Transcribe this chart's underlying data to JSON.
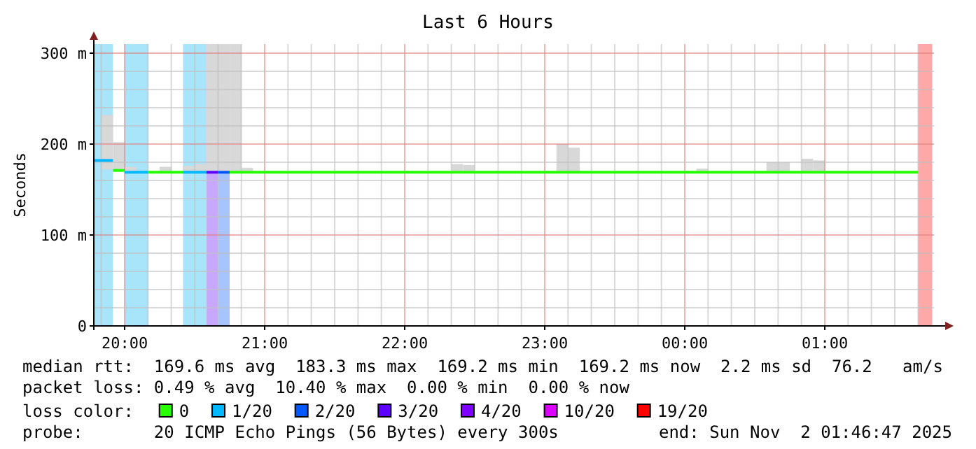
{
  "chart_data": {
    "title": "Last 6 Hours",
    "ylabel": "Seconds",
    "legend_title": "loss color:",
    "legend": "bottom",
    "grid": true,
    "xlim": [
      "2025-11-01T19:46:47",
      "2025-11-02T01:46:47"
    ],
    "xticks": [
      {
        "value": "2025-11-01T19:50",
        "label": null
      },
      {
        "value": "2025-11-01T20:00",
        "label": "20:00"
      },
      {
        "value": "2025-11-01T20:10",
        "label": null
      },
      {
        "value": "2025-11-01T20:20",
        "label": null
      },
      {
        "value": "2025-11-01T20:30",
        "label": null
      },
      {
        "value": "2025-11-01T20:40",
        "label": null
      },
      {
        "value": "2025-11-01T20:50",
        "label": null
      },
      {
        "value": "2025-11-01T21:00",
        "label": "21:00"
      },
      {
        "value": "2025-11-01T21:10",
        "label": null
      },
      {
        "value": "2025-11-01T21:20",
        "label": null
      },
      {
        "value": "2025-11-01T21:30",
        "label": null
      },
      {
        "value": "2025-11-01T21:40",
        "label": null
      },
      {
        "value": "2025-11-01T21:50",
        "label": null
      },
      {
        "value": "2025-11-01T22:00",
        "label": "22:00"
      },
      {
        "value": "2025-11-01T22:10",
        "label": null
      },
      {
        "value": "2025-11-01T22:20",
        "label": null
      },
      {
        "value": "2025-11-01T22:30",
        "label": null
      },
      {
        "value": "2025-11-01T22:40",
        "label": null
      },
      {
        "value": "2025-11-01T22:50",
        "label": null
      },
      {
        "value": "2025-11-01T23:00",
        "label": "23:00"
      },
      {
        "value": "2025-11-01T23:10",
        "label": null
      },
      {
        "value": "2025-11-01T23:20",
        "label": null
      },
      {
        "value": "2025-11-01T23:30",
        "label": null
      },
      {
        "value": "2025-11-01T23:40",
        "label": null
      },
      {
        "value": "2025-11-01T23:50",
        "label": null
      },
      {
        "value": "2025-11-02T00:00",
        "label": "00:00"
      },
      {
        "value": "2025-11-02T00:10",
        "label": null
      },
      {
        "value": "2025-11-02T00:20",
        "label": null
      },
      {
        "value": "2025-11-02T00:30",
        "label": null
      },
      {
        "value": "2025-11-02T00:40",
        "label": null
      },
      {
        "value": "2025-11-02T00:50",
        "label": null
      },
      {
        "value": "2025-11-02T01:00",
        "label": "01:00"
      },
      {
        "value": "2025-11-02T01:10",
        "label": null
      },
      {
        "value": "2025-11-02T01:20",
        "label": null
      },
      {
        "value": "2025-11-02T01:30",
        "label": null
      },
      {
        "value": "2025-11-02T01:40",
        "label": null
      }
    ],
    "ylim": [
      0,
      310
    ],
    "yticks": [
      {
        "value": 0,
        "label": "0"
      },
      {
        "value": 20,
        "label": null
      },
      {
        "value": 40,
        "label": null
      },
      {
        "value": 60,
        "label": null
      },
      {
        "value": 80,
        "label": null
      },
      {
        "value": 100,
        "label": "100 m"
      },
      {
        "value": 120,
        "label": null
      },
      {
        "value": 140,
        "label": null
      },
      {
        "value": 160,
        "label": null
      },
      {
        "value": 180,
        "label": null
      },
      {
        "value": 200,
        "label": "200 m"
      },
      {
        "value": 220,
        "label": null
      },
      {
        "value": 240,
        "label": null
      },
      {
        "value": 260,
        "label": null
      },
      {
        "value": 280,
        "label": null
      },
      {
        "value": 300,
        "label": "300 m"
      }
    ],
    "bands": [
      {
        "axis": "x",
        "from": "2025-11-01T19:46:47",
        "to": "2025-11-01T19:55",
        "color": "#a8e4fa"
      },
      {
        "axis": "x",
        "from": "2025-11-01T20:00",
        "to": "2025-11-01T20:10",
        "color": "#a8e4fa"
      },
      {
        "axis": "x",
        "from": "2025-11-01T20:25",
        "to": "2025-11-01T20:35",
        "color": "#a8e4fa"
      },
      {
        "axis": "x",
        "from": "2025-11-01T20:35",
        "to": "2025-11-01T20:40",
        "color": "#c8a8fc"
      },
      {
        "axis": "x",
        "from": "2025-11-01T20:40",
        "to": "2025-11-01T20:45",
        "color": "#a8c4fc"
      },
      {
        "axis": "x",
        "from": "2025-11-02T01:40",
        "to": "2025-11-02T01:46",
        "color": "#ffa8a8"
      }
    ],
    "type": "line",
    "series": [
      {
        "type": "bar",
        "color": "#d8d8d8",
        "x": [
          "2025-11-01T19:52:30",
          "2025-11-01T19:57:30",
          "2025-11-01T20:02:30",
          "2025-11-01T20:17:30",
          "2025-11-01T20:27:30",
          "2025-11-01T20:32:30",
          "2025-11-01T20:37:30",
          "2025-11-01T20:42:30",
          "2025-11-01T20:47:30",
          "2025-11-01T20:52:30",
          "2025-11-01T22:22:30",
          "2025-11-01T22:27:30",
          "2025-11-01T23:07:30",
          "2025-11-01T23:12:30",
          "2025-11-02T00:07:30",
          "2025-11-02T00:37:30",
          "2025-11-02T00:42:30",
          "2025-11-02T00:52:30",
          "2025-11-02T00:57:30"
        ],
        "base": [
          172,
          171,
          169,
          169,
          169,
          169,
          169,
          169,
          169,
          169,
          169,
          169,
          169,
          169,
          169,
          169,
          169,
          169,
          169
        ],
        "values": [
          60,
          31,
          6,
          6,
          7,
          9,
          141,
          141,
          141,
          5,
          9,
          8,
          31,
          27,
          4,
          11,
          11,
          15,
          13
        ]
      },
      {
        "name": "0",
        "color": "#26ff00",
        "x": [
          "2025-11-01T19:55",
          "2025-11-01T20:00"
        ],
        "values": [
          171,
          171
        ]
      },
      {
        "name": "1/20",
        "color": "#00b8ff",
        "x": [
          "2025-11-01T19:46:47",
          "2025-11-01T19:55"
        ],
        "values": [
          182,
          182
        ]
      },
      {
        "name": "2/20",
        "color": "#0059ff",
        "x": [
          "2025-11-01T20:40",
          "2025-11-01T20:45"
        ],
        "values": [
          169,
          169
        ]
      },
      {
        "name": "3/20",
        "color": "#5e00ff",
        "x": [
          "2025-11-01T20:35",
          "2025-11-01T20:40"
        ],
        "values": [
          169,
          169
        ]
      },
      {
        "name": "4/20",
        "color": "#7e00ff"
      },
      {
        "name": "10/20",
        "color": "#dd00ff"
      },
      {
        "name": "19/20",
        "color": "#ff0000"
      },
      {
        "color": "#26ff00",
        "x": [
          "2025-11-01T20:10",
          "2025-11-01T20:25"
        ],
        "values": [
          169,
          169
        ]
      },
      {
        "color": "#26ff00",
        "x": [
          "2025-11-01T20:45",
          "2025-11-02T01:40"
        ],
        "values": [
          169,
          169
        ]
      },
      {
        "color": "#00b8ff",
        "x": [
          "2025-11-01T20:00",
          "2025-11-01T20:10"
        ],
        "values": [
          169,
          169
        ]
      },
      {
        "color": "#00b8ff",
        "x": [
          "2025-11-01T20:25",
          "2025-11-01T20:35"
        ],
        "values": [
          169,
          169
        ]
      }
    ],
    "annotations": [
      "median rtt:  169.6 ms avg  183.3 ms max  169.2 ms min  169.2 ms now  2.2 ms sd  76.2   am/s",
      "packet loss: 0.49 % avg  10.40 % max  0.00 % min  0.00 % now",
      "probe:       20 ICMP Echo Pings (56 Bytes) every 300s",
      "end: Sun Nov  2 01:46:47 2025"
    ]
  }
}
